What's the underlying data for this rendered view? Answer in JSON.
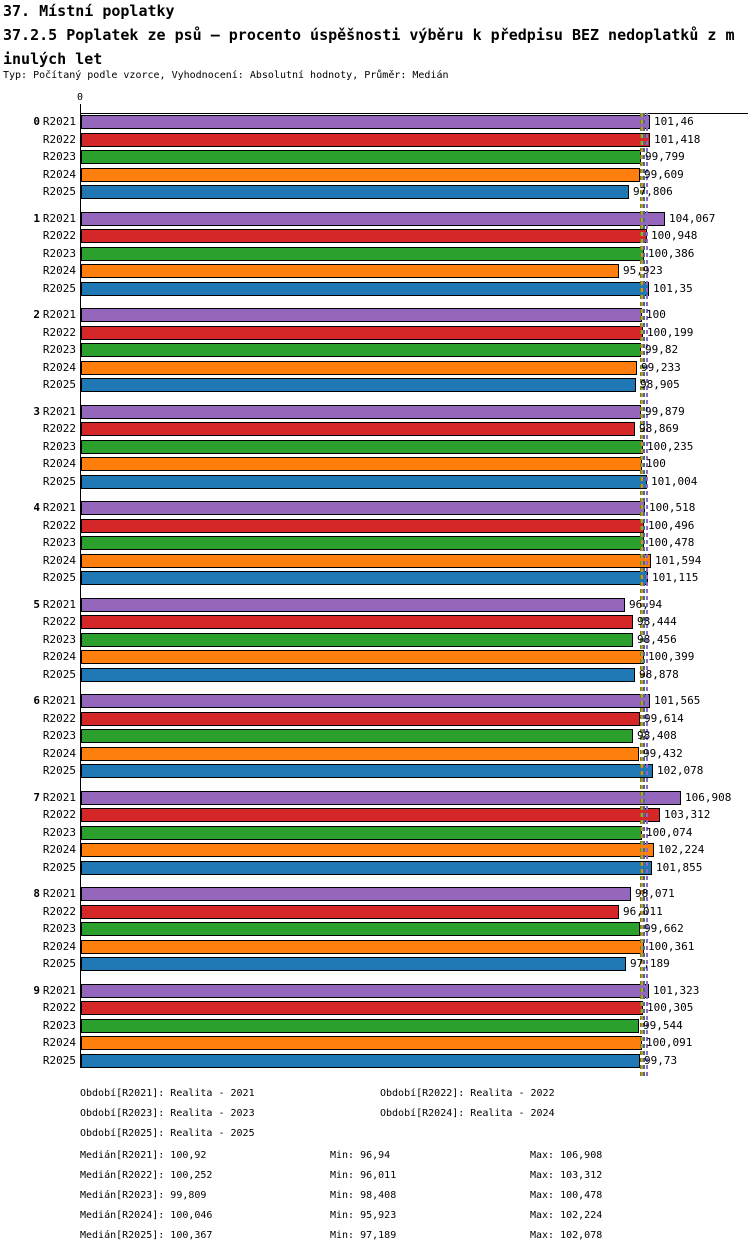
{
  "header": {
    "title_line1": "37. Místní poplatky",
    "title_line2": "37.2.5 Poplatek ze psů – procento úspěšnosti výběru k předpisu BEZ nedoplatků z m",
    "title_line3": "inulých let",
    "subtitle": "Typ: Počítaný podle vzorce, Vyhodnocení: Absolutní hodnoty, Průměr: Medián"
  },
  "chart_data": {
    "type": "bar",
    "orientation": "horizontal",
    "value_axis": {
      "origin_label": "0",
      "min": 0,
      "implied_max": 119
    },
    "grid": false,
    "legend_position": "bottom",
    "series": [
      {
        "name": "R2021",
        "color": "#9467bd",
        "median": 100.92,
        "period_label": "Období[R2021]: Realita - 2021",
        "median_label": "Medián[R2021]: 100,92",
        "min_label": "Min: 96,94",
        "max_label": "Max: 106,908"
      },
      {
        "name": "R2022",
        "color": "#d62728",
        "median": 100.252,
        "period_label": "Období[R2022]: Realita - 2022",
        "median_label": "Medián[R2022]: 100,252",
        "min_label": "Min: 96,011",
        "max_label": "Max: 103,312"
      },
      {
        "name": "R2023",
        "color": "#2ca02c",
        "median": 99.809,
        "period_label": "Období[R2023]: Realita - 2023",
        "median_label": "Medián[R2023]: 99,809",
        "min_label": "Min: 98,408",
        "max_label": "Max: 100,478"
      },
      {
        "name": "R2024",
        "color": "#ff7f0e",
        "median": 100.046,
        "period_label": "Období[R2024]: Realita - 2024",
        "median_label": "Medián[R2024]: 100,046",
        "min_label": "Min: 95,923",
        "max_label": "Max: 102,224"
      },
      {
        "name": "R2025",
        "color": "#1f77b4",
        "median": 100.367,
        "period_label": "Období[R2025]: Realita - 2025",
        "median_label": "Medián[R2025]: 100,367",
        "min_label": "Min: 97,189",
        "max_label": "Max: 102,078"
      }
    ],
    "categories": [
      "0",
      "1",
      "2",
      "3",
      "4",
      "5",
      "6",
      "7",
      "8",
      "9"
    ],
    "groups": [
      {
        "label": "0",
        "values": [
          101.46,
          101.418,
          99.799,
          99.609,
          97.806
        ],
        "labels": [
          "101,46",
          "101,418",
          "99,799",
          "99,609",
          "97,806"
        ]
      },
      {
        "label": "1",
        "values": [
          104.067,
          100.948,
          100.386,
          95.923,
          101.35
        ],
        "labels": [
          "104,067",
          "100,948",
          "100,386",
          "95,923",
          "101,35"
        ]
      },
      {
        "label": "2",
        "values": [
          100,
          100.199,
          99.82,
          99.233,
          98.905
        ],
        "labels": [
          "100",
          "100,199",
          "99,82",
          "99,233",
          "98,905"
        ]
      },
      {
        "label": "3",
        "values": [
          99.879,
          98.869,
          100.235,
          100,
          101.004
        ],
        "labels": [
          "99,879",
          "98,869",
          "100,235",
          "100",
          "101,004"
        ]
      },
      {
        "label": "4",
        "values": [
          100.518,
          100.496,
          100.478,
          101.594,
          101.115
        ],
        "labels": [
          "100,518",
          "100,496",
          "100,478",
          "101,594",
          "101,115"
        ]
      },
      {
        "label": "5",
        "values": [
          96.94,
          98.444,
          98.456,
          100.399,
          98.878
        ],
        "labels": [
          "96,94",
          "98,444",
          "98,456",
          "100,399",
          "98,878"
        ]
      },
      {
        "label": "6",
        "values": [
          101.565,
          99.614,
          98.408,
          99.432,
          102.078
        ],
        "labels": [
          "101,565",
          "99,614",
          "98,408",
          "99,432",
          "102,078"
        ]
      },
      {
        "label": "7",
        "values": [
          106.908,
          103.312,
          100.074,
          102.224,
          101.855
        ],
        "labels": [
          "106,908",
          "103,312",
          "100,074",
          "102,224",
          "101,855"
        ]
      },
      {
        "label": "8",
        "values": [
          98.071,
          96.011,
          99.662,
          100.361,
          97.189
        ],
        "labels": [
          "98,071",
          "96,011",
          "99,662",
          "100,361",
          "97,189"
        ]
      },
      {
        "label": "9",
        "values": [
          101.323,
          100.305,
          99.544,
          100.091,
          99.73
        ],
        "labels": [
          "101,323",
          "100,305",
          "99,544",
          "100,091",
          "99,73"
        ]
      }
    ]
  }
}
